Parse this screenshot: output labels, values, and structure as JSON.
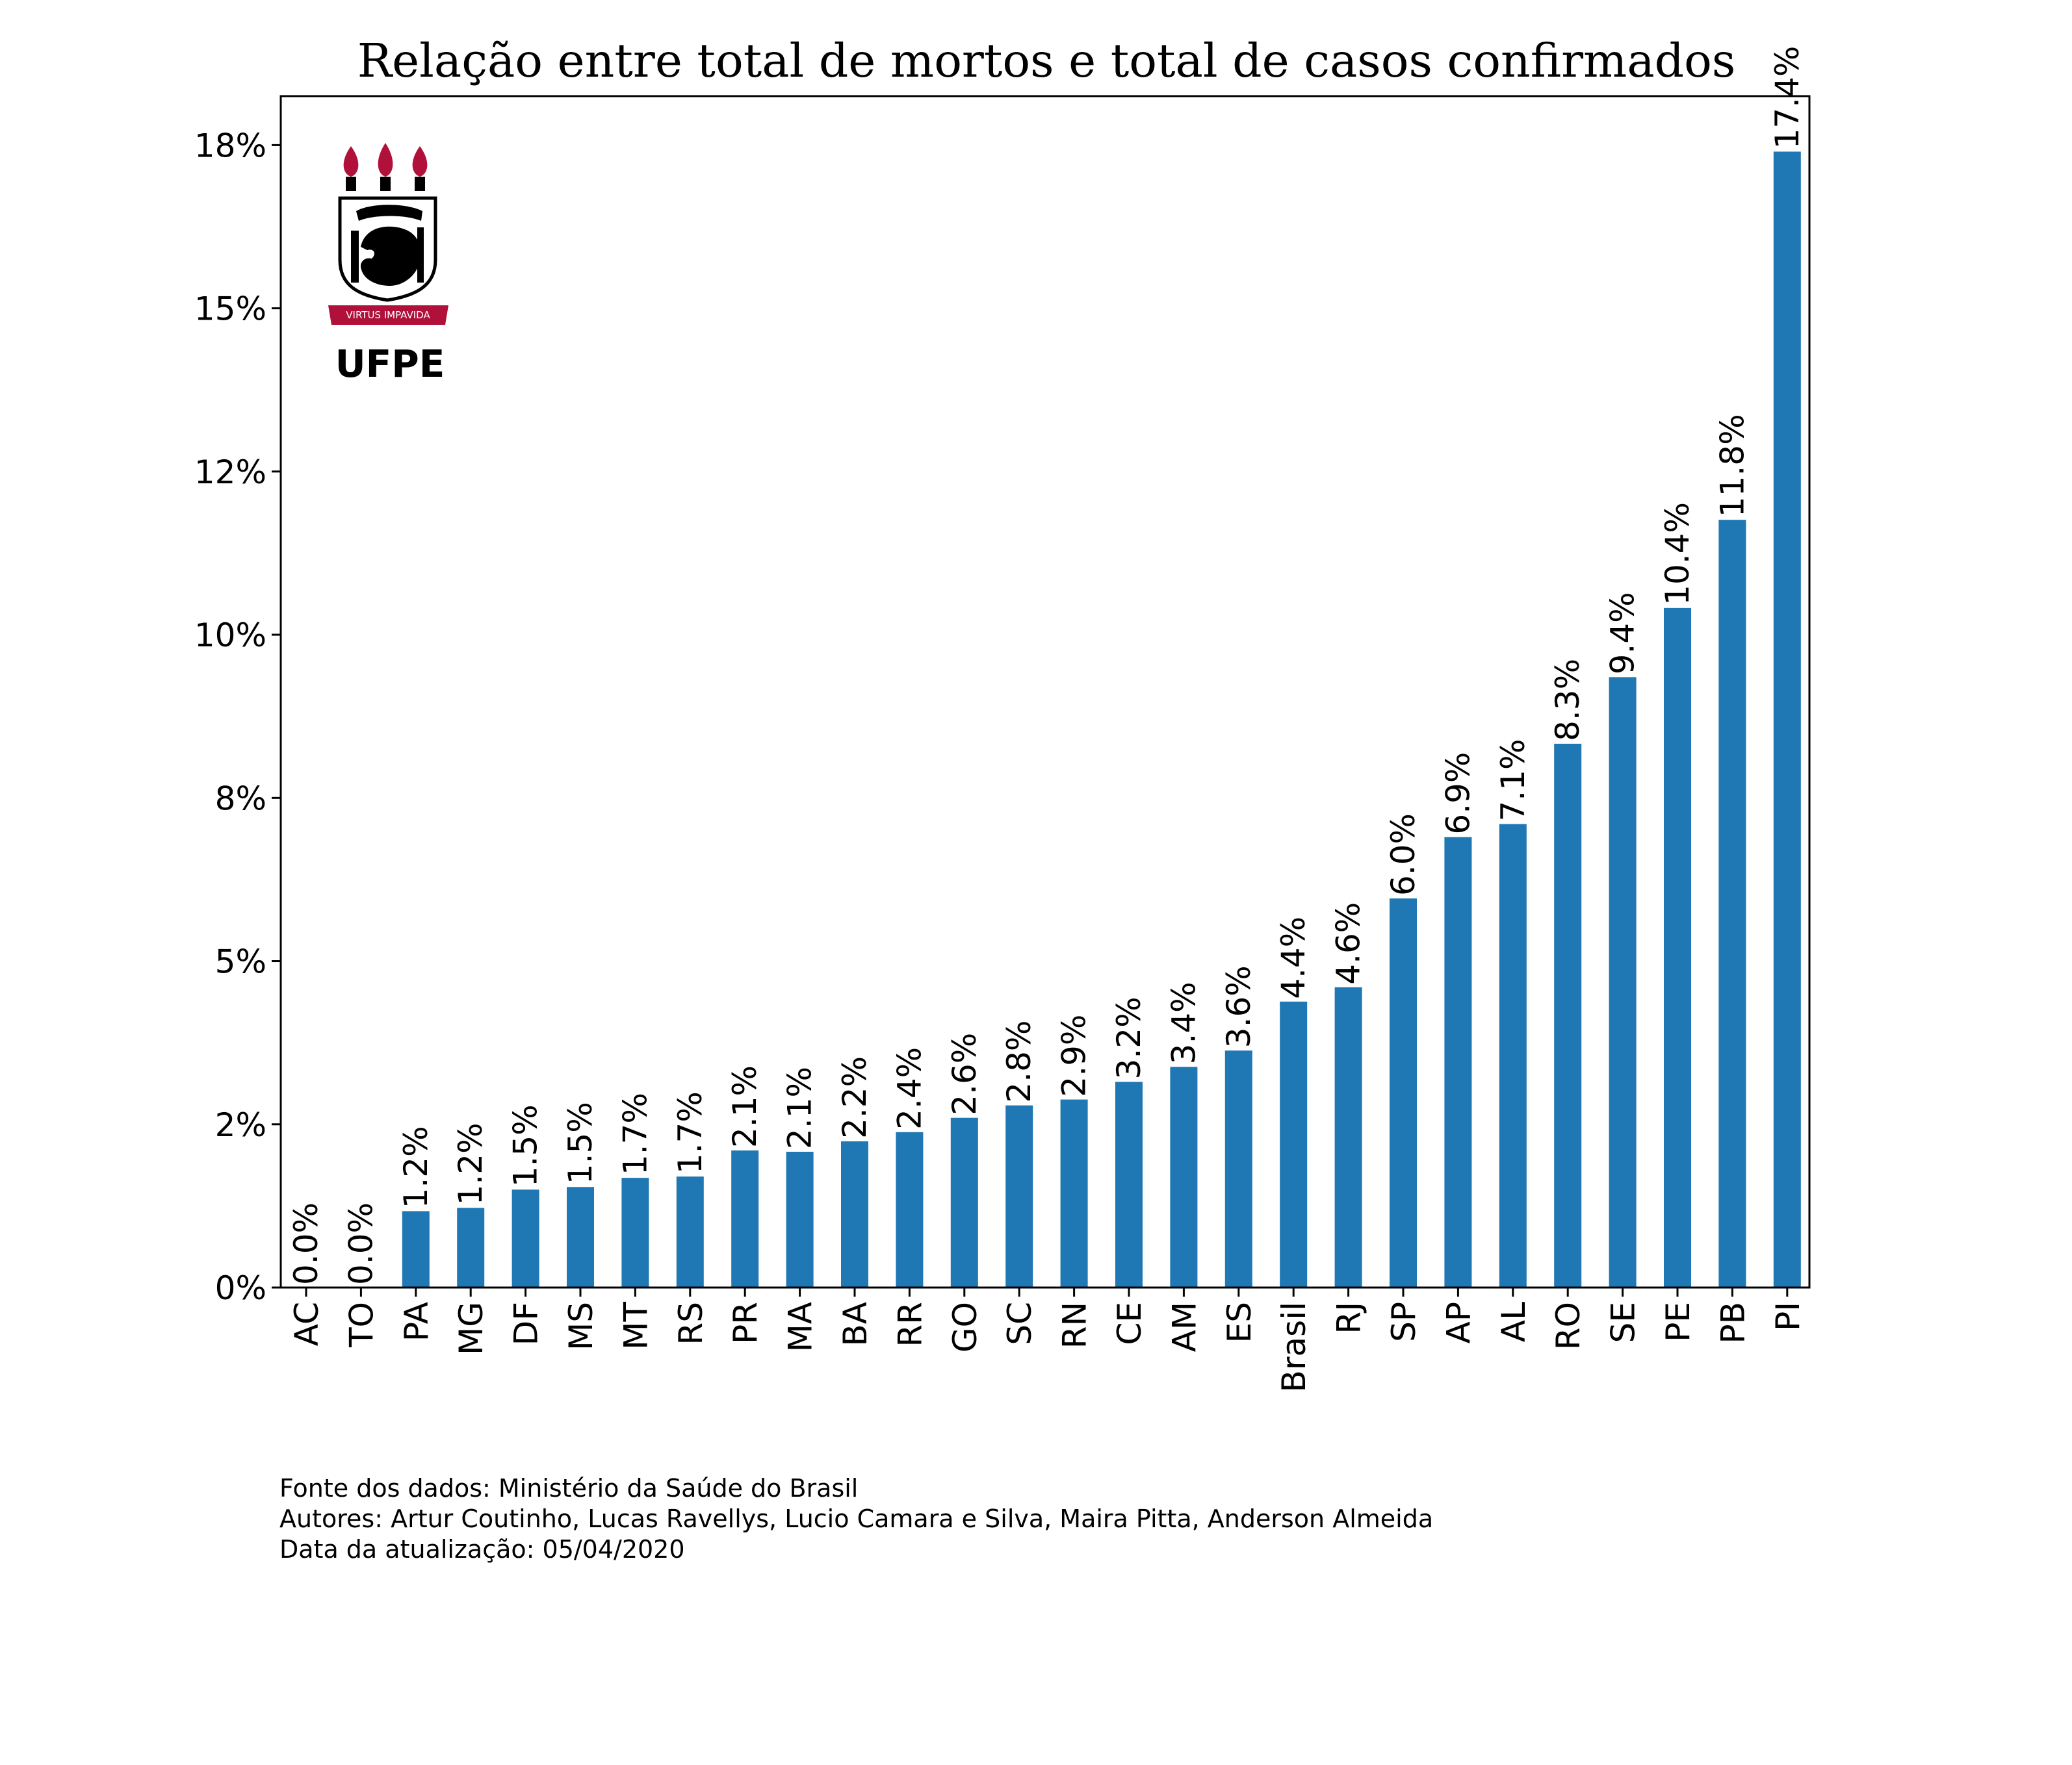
{
  "chart_data": {
    "type": "bar",
    "title": "Relação entre total de mortos e total de casos confirmados",
    "xlabel": "",
    "ylabel": "",
    "categories": [
      "AC",
      "TO",
      "PA",
      "MG",
      "DF",
      "MS",
      "MT",
      "RS",
      "PR",
      "MA",
      "BA",
      "RR",
      "GO",
      "SC",
      "RN",
      "CE",
      "AM",
      "ES",
      "Brasil",
      "RJ",
      "SP",
      "AP",
      "AL",
      "RO",
      "SE",
      "PE",
      "PB",
      "PI"
    ],
    "values": [
      0.0,
      0.0,
      1.17,
      1.22,
      1.5,
      1.54,
      1.68,
      1.7,
      2.1,
      2.08,
      2.24,
      2.38,
      2.6,
      2.79,
      2.88,
      3.15,
      3.38,
      3.63,
      4.38,
      4.6,
      5.96,
      6.9,
      7.1,
      8.33,
      9.35,
      10.41,
      11.76,
      17.4
    ],
    "value_labels": [
      "0.0%",
      "0.0%",
      "1.2%",
      "1.2%",
      "1.5%",
      "1.5%",
      "1.7%",
      "1.7%",
      "2.1%",
      "2.1%",
      "2.2%",
      "2.4%",
      "2.6%",
      "2.8%",
      "2.9%",
      "3.2%",
      "3.4%",
      "3.6%",
      "4.4%",
      "4.6%",
      "6.0%",
      "6.9%",
      "7.1%",
      "8.3%",
      "9.4%",
      "10.4%",
      "11.8%",
      "17.4%"
    ],
    "yticks": [
      0,
      2.5,
      5,
      7.5,
      10,
      12.5,
      15,
      17.5
    ],
    "ytick_labels": [
      "0%",
      "2%",
      "5%",
      "8%",
      "10%",
      "12%",
      "15%",
      "18%"
    ],
    "ylim": [
      0,
      18.25
    ],
    "bar_color": "#1f77b4",
    "grid": false,
    "legend": "none"
  },
  "logo": {
    "text": "UFPE",
    "motto": "VIRTUS IMPAVIDA",
    "flame_color": "#b0103a",
    "ribbon_color": "#b0103a"
  },
  "footer": {
    "source": "Fonte dos dados: Ministério da Saúde do Brasil",
    "authors": "Autores: Artur Coutinho, Lucas Ravellys, Lucio Camara e Silva, Maira Pitta, Anderson Almeida",
    "updated": "Data da atualização: 05/04/2020"
  }
}
